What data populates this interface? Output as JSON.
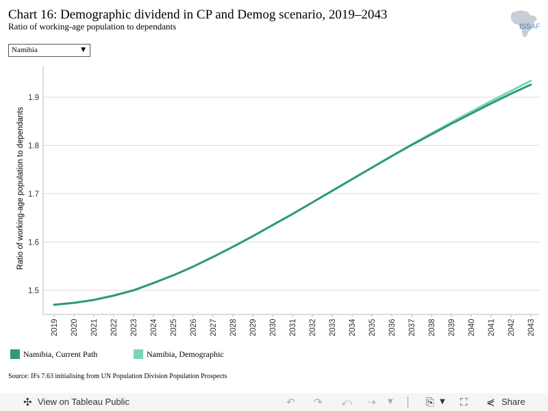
{
  "header": {
    "title": "Chart 16: Demographic dividend in CP and Demog scenario, 2019–2043",
    "subtitle": "Ratio of working-age population to dependants",
    "logo_text": "ISS",
    "logo_text2": "AF"
  },
  "filter": {
    "selected": "Namibia"
  },
  "legend": {
    "items": [
      {
        "label": "Namibia, Current Path",
        "color": "#2e9b72"
      },
      {
        "label": "Namibia, Demographic",
        "color": "#7dd4b0"
      }
    ]
  },
  "source": "Source: IFs 7.63 initialising from UN Population Division Population Prospects",
  "toolbar": {
    "view_label": "View on Tableau Public",
    "share_label": "Share",
    "icons": [
      "tableau-logo-icon",
      "undo-icon",
      "redo-icon",
      "revert-icon",
      "refresh-icon",
      "download-icon",
      "fullscreen-icon",
      "share-icon"
    ]
  },
  "chart_data": {
    "type": "line",
    "ylabel": "Ratio of working-age population to dependants",
    "xlabel": "",
    "x": [
      2019,
      2020,
      2021,
      2022,
      2023,
      2024,
      2025,
      2026,
      2027,
      2028,
      2029,
      2030,
      2031,
      2032,
      2033,
      2034,
      2035,
      2036,
      2037,
      2038,
      2039,
      2040,
      2041,
      2042,
      2043
    ],
    "ylim": [
      1.45,
      1.965
    ],
    "yticks": [
      1.5,
      1.6,
      1.7,
      1.8,
      1.9
    ],
    "ytick_labels": [
      "1.5",
      "1.6",
      "1.7",
      "1.8",
      "1.9"
    ],
    "grid": true,
    "series": [
      {
        "name": "Namibia, Current Path",
        "color": "#2e9b72",
        "values": [
          1.47,
          1.474,
          1.48,
          1.489,
          1.5,
          1.515,
          1.531,
          1.549,
          1.569,
          1.59,
          1.612,
          1.635,
          1.658,
          1.682,
          1.706,
          1.73,
          1.754,
          1.778,
          1.801,
          1.823,
          1.845,
          1.866,
          1.887,
          1.907,
          1.926
        ]
      },
      {
        "name": "Namibia, Demographic",
        "color": "#7dd4b0",
        "values": [
          1.47,
          1.474,
          1.48,
          1.489,
          1.5,
          1.515,
          1.531,
          1.549,
          1.569,
          1.59,
          1.612,
          1.635,
          1.658,
          1.682,
          1.706,
          1.73,
          1.754,
          1.778,
          1.802,
          1.825,
          1.848,
          1.87,
          1.892,
          1.913,
          1.934
        ]
      }
    ]
  }
}
